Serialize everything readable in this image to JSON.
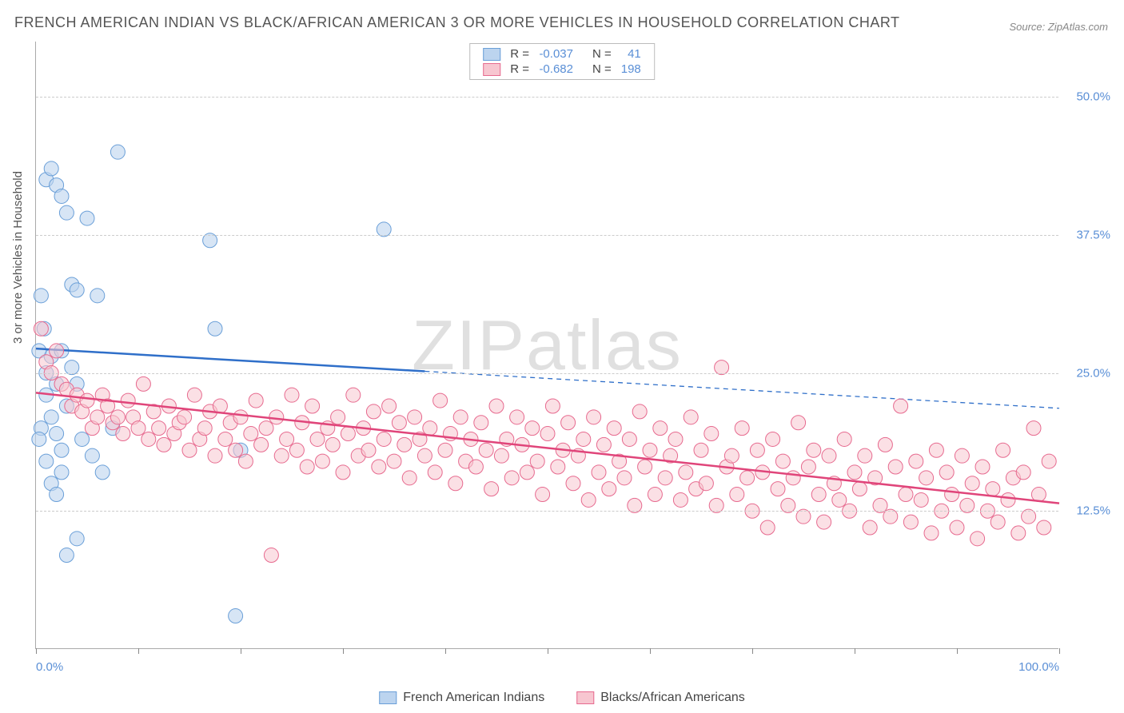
{
  "title": "FRENCH AMERICAN INDIAN VS BLACK/AFRICAN AMERICAN 3 OR MORE VEHICLES IN HOUSEHOLD CORRELATION CHART",
  "source": "Source: ZipAtlas.com",
  "ylabel": "3 or more Vehicles in Household",
  "watermark_a": "ZIP",
  "watermark_b": "atlas",
  "chart": {
    "type": "scatter",
    "xlim": [
      0,
      100
    ],
    "ylim": [
      0,
      55
    ],
    "yticks": [
      12.5,
      25.0,
      37.5,
      50.0
    ],
    "ytick_labels": [
      "12.5%",
      "25.0%",
      "37.5%",
      "50.0%"
    ],
    "xticks": [
      0,
      10,
      20,
      30,
      40,
      50,
      60,
      70,
      80,
      90,
      100
    ],
    "xtick_labels": {
      "0": "0.0%",
      "100": "100.0%"
    },
    "background_color": "#ffffff",
    "grid_color": "#cccccc",
    "axis_color": "#aaaaaa",
    "label_color": "#5a8fd6"
  },
  "series": [
    {
      "name": "French American Indians",
      "marker_fill": "#bcd4ef",
      "marker_stroke": "#6a9fd8",
      "marker_fill_opacity": 0.6,
      "marker_radius": 9,
      "line_color": "#2f6fc9",
      "line_width": 2.5,
      "R": "-0.037",
      "N": "41",
      "regression": {
        "x1": 0,
        "y1": 27.2,
        "x2": 100,
        "y2": 21.8,
        "solid_until_x": 38
      },
      "points": [
        [
          0.5,
          32.0
        ],
        [
          1.0,
          42.5
        ],
        [
          1.5,
          43.5
        ],
        [
          2.0,
          42.0
        ],
        [
          2.5,
          41.0
        ],
        [
          3.0,
          39.5
        ],
        [
          1.0,
          25.0
        ],
        [
          1.5,
          26.5
        ],
        [
          2.0,
          24.0
        ],
        [
          2.5,
          27.0
        ],
        [
          3.5,
          33.0
        ],
        [
          4.0,
          32.5
        ],
        [
          5.0,
          39.0
        ],
        [
          6.0,
          32.0
        ],
        [
          8.0,
          45.0
        ],
        [
          0.5,
          20.0
        ],
        [
          1.0,
          23.0
        ],
        [
          1.5,
          21.0
        ],
        [
          2.0,
          19.5
        ],
        [
          2.5,
          18.0
        ],
        [
          3.0,
          22.0
        ],
        [
          4.5,
          19.0
        ],
        [
          5.5,
          17.5
        ],
        [
          6.5,
          16.0
        ],
        [
          3.0,
          8.5
        ],
        [
          4.0,
          10.0
        ],
        [
          17.0,
          37.0
        ],
        [
          17.5,
          29.0
        ],
        [
          20.0,
          18.0
        ],
        [
          19.5,
          3.0
        ],
        [
          34.0,
          38.0
        ],
        [
          1.0,
          17.0
        ],
        [
          1.5,
          15.0
        ],
        [
          2.0,
          14.0
        ],
        [
          2.5,
          16.0
        ],
        [
          0.3,
          27.0
        ],
        [
          0.8,
          29.0
        ],
        [
          0.3,
          19.0
        ],
        [
          3.5,
          25.5
        ],
        [
          4.0,
          24.0
        ],
        [
          7.5,
          20.0
        ]
      ]
    },
    {
      "name": "Blacks/African Americans",
      "marker_fill": "#f7c6d0",
      "marker_stroke": "#e76a8f",
      "marker_fill_opacity": 0.55,
      "marker_radius": 9,
      "line_color": "#e0457a",
      "line_width": 2.5,
      "R": "-0.682",
      "N": "198",
      "regression": {
        "x1": 0,
        "y1": 23.2,
        "x2": 100,
        "y2": 13.2,
        "solid_until_x": 100
      },
      "points": [
        [
          0.5,
          29.0
        ],
        [
          1.0,
          26.0
        ],
        [
          1.5,
          25.0
        ],
        [
          2.0,
          27.0
        ],
        [
          2.5,
          24.0
        ],
        [
          3.0,
          23.5
        ],
        [
          3.5,
          22.0
        ],
        [
          4.0,
          23.0
        ],
        [
          4.5,
          21.5
        ],
        [
          5.0,
          22.5
        ],
        [
          5.5,
          20.0
        ],
        [
          6.0,
          21.0
        ],
        [
          6.5,
          23.0
        ],
        [
          7.0,
          22.0
        ],
        [
          7.5,
          20.5
        ],
        [
          8.0,
          21.0
        ],
        [
          8.5,
          19.5
        ],
        [
          9.0,
          22.5
        ],
        [
          9.5,
          21.0
        ],
        [
          10.0,
          20.0
        ],
        [
          10.5,
          24.0
        ],
        [
          11.0,
          19.0
        ],
        [
          11.5,
          21.5
        ],
        [
          12.0,
          20.0
        ],
        [
          12.5,
          18.5
        ],
        [
          13.0,
          22.0
        ],
        [
          13.5,
          19.5
        ],
        [
          14.0,
          20.5
        ],
        [
          14.5,
          21.0
        ],
        [
          15.0,
          18.0
        ],
        [
          15.5,
          23.0
        ],
        [
          16.0,
          19.0
        ],
        [
          16.5,
          20.0
        ],
        [
          17.0,
          21.5
        ],
        [
          17.5,
          17.5
        ],
        [
          18.0,
          22.0
        ],
        [
          18.5,
          19.0
        ],
        [
          19.0,
          20.5
        ],
        [
          19.5,
          18.0
        ],
        [
          20.0,
          21.0
        ],
        [
          20.5,
          17.0
        ],
        [
          21.0,
          19.5
        ],
        [
          21.5,
          22.5
        ],
        [
          22.0,
          18.5
        ],
        [
          22.5,
          20.0
        ],
        [
          23.0,
          8.5
        ],
        [
          23.5,
          21.0
        ],
        [
          24.0,
          17.5
        ],
        [
          24.5,
          19.0
        ],
        [
          25.0,
          23.0
        ],
        [
          25.5,
          18.0
        ],
        [
          26.0,
          20.5
        ],
        [
          26.5,
          16.5
        ],
        [
          27.0,
          22.0
        ],
        [
          27.5,
          19.0
        ],
        [
          28.0,
          17.0
        ],
        [
          28.5,
          20.0
        ],
        [
          29.0,
          18.5
        ],
        [
          29.5,
          21.0
        ],
        [
          30.0,
          16.0
        ],
        [
          30.5,
          19.5
        ],
        [
          31.0,
          23.0
        ],
        [
          31.5,
          17.5
        ],
        [
          32.0,
          20.0
        ],
        [
          32.5,
          18.0
        ],
        [
          33.0,
          21.5
        ],
        [
          33.5,
          16.5
        ],
        [
          34.0,
          19.0
        ],
        [
          34.5,
          22.0
        ],
        [
          35.0,
          17.0
        ],
        [
          35.5,
          20.5
        ],
        [
          36.0,
          18.5
        ],
        [
          36.5,
          15.5
        ],
        [
          37.0,
          21.0
        ],
        [
          37.5,
          19.0
        ],
        [
          38.0,
          17.5
        ],
        [
          38.5,
          20.0
        ],
        [
          39.0,
          16.0
        ],
        [
          39.5,
          22.5
        ],
        [
          40.0,
          18.0
        ],
        [
          40.5,
          19.5
        ],
        [
          41.0,
          15.0
        ],
        [
          41.5,
          21.0
        ],
        [
          42.0,
          17.0
        ],
        [
          42.5,
          19.0
        ],
        [
          43.0,
          16.5
        ],
        [
          43.5,
          20.5
        ],
        [
          44.0,
          18.0
        ],
        [
          44.5,
          14.5
        ],
        [
          45.0,
          22.0
        ],
        [
          45.5,
          17.5
        ],
        [
          46.0,
          19.0
        ],
        [
          46.5,
          15.5
        ],
        [
          47.0,
          21.0
        ],
        [
          47.5,
          18.5
        ],
        [
          48.0,
          16.0
        ],
        [
          48.5,
          20.0
        ],
        [
          49.0,
          17.0
        ],
        [
          49.5,
          14.0
        ],
        [
          50.0,
          19.5
        ],
        [
          50.5,
          22.0
        ],
        [
          51.0,
          16.5
        ],
        [
          51.5,
          18.0
        ],
        [
          52.0,
          20.5
        ],
        [
          52.5,
          15.0
        ],
        [
          53.0,
          17.5
        ],
        [
          53.5,
          19.0
        ],
        [
          54.0,
          13.5
        ],
        [
          54.5,
          21.0
        ],
        [
          55.0,
          16.0
        ],
        [
          55.5,
          18.5
        ],
        [
          56.0,
          14.5
        ],
        [
          56.5,
          20.0
        ],
        [
          57.0,
          17.0
        ],
        [
          57.5,
          15.5
        ],
        [
          58.0,
          19.0
        ],
        [
          58.5,
          13.0
        ],
        [
          59.0,
          21.5
        ],
        [
          59.5,
          16.5
        ],
        [
          60.0,
          18.0
        ],
        [
          60.5,
          14.0
        ],
        [
          61.0,
          20.0
        ],
        [
          61.5,
          15.5
        ],
        [
          62.0,
          17.5
        ],
        [
          62.5,
          19.0
        ],
        [
          63.0,
          13.5
        ],
        [
          63.5,
          16.0
        ],
        [
          64.0,
          21.0
        ],
        [
          64.5,
          14.5
        ],
        [
          65.0,
          18.0
        ],
        [
          65.5,
          15.0
        ],
        [
          66.0,
          19.5
        ],
        [
          66.5,
          13.0
        ],
        [
          67.0,
          25.5
        ],
        [
          67.5,
          16.5
        ],
        [
          68.0,
          17.5
        ],
        [
          68.5,
          14.0
        ],
        [
          69.0,
          20.0
        ],
        [
          69.5,
          15.5
        ],
        [
          70.0,
          12.5
        ],
        [
          70.5,
          18.0
        ],
        [
          71.0,
          16.0
        ],
        [
          71.5,
          11.0
        ],
        [
          72.0,
          19.0
        ],
        [
          72.5,
          14.5
        ],
        [
          73.0,
          17.0
        ],
        [
          73.5,
          13.0
        ],
        [
          74.0,
          15.5
        ],
        [
          74.5,
          20.5
        ],
        [
          75.0,
          12.0
        ],
        [
          75.5,
          16.5
        ],
        [
          76.0,
          18.0
        ],
        [
          76.5,
          14.0
        ],
        [
          77.0,
          11.5
        ],
        [
          77.5,
          17.5
        ],
        [
          78.0,
          15.0
        ],
        [
          78.5,
          13.5
        ],
        [
          79.0,
          19.0
        ],
        [
          79.5,
          12.5
        ],
        [
          80.0,
          16.0
        ],
        [
          80.5,
          14.5
        ],
        [
          81.0,
          17.5
        ],
        [
          81.5,
          11.0
        ],
        [
          82.0,
          15.5
        ],
        [
          82.5,
          13.0
        ],
        [
          83.0,
          18.5
        ],
        [
          83.5,
          12.0
        ],
        [
          84.0,
          16.5
        ],
        [
          84.5,
          22.0
        ],
        [
          85.0,
          14.0
        ],
        [
          85.5,
          11.5
        ],
        [
          86.0,
          17.0
        ],
        [
          86.5,
          13.5
        ],
        [
          87.0,
          15.5
        ],
        [
          87.5,
          10.5
        ],
        [
          88.0,
          18.0
        ],
        [
          88.5,
          12.5
        ],
        [
          89.0,
          16.0
        ],
        [
          89.5,
          14.0
        ],
        [
          90.0,
          11.0
        ],
        [
          90.5,
          17.5
        ],
        [
          91.0,
          13.0
        ],
        [
          91.5,
          15.0
        ],
        [
          92.0,
          10.0
        ],
        [
          92.5,
          16.5
        ],
        [
          93.0,
          12.5
        ],
        [
          93.5,
          14.5
        ],
        [
          94.0,
          11.5
        ],
        [
          94.5,
          18.0
        ],
        [
          95.0,
          13.5
        ],
        [
          95.5,
          15.5
        ],
        [
          96.0,
          10.5
        ],
        [
          96.5,
          16.0
        ],
        [
          97.0,
          12.0
        ],
        [
          97.5,
          20.0
        ],
        [
          98.0,
          14.0
        ],
        [
          98.5,
          11.0
        ],
        [
          99.0,
          17.0
        ]
      ]
    }
  ],
  "legend_top": {
    "label_R": "R =",
    "label_N": "N ="
  },
  "legend_bottom": {
    "items": [
      "French American Indians",
      "Blacks/African Americans"
    ]
  }
}
